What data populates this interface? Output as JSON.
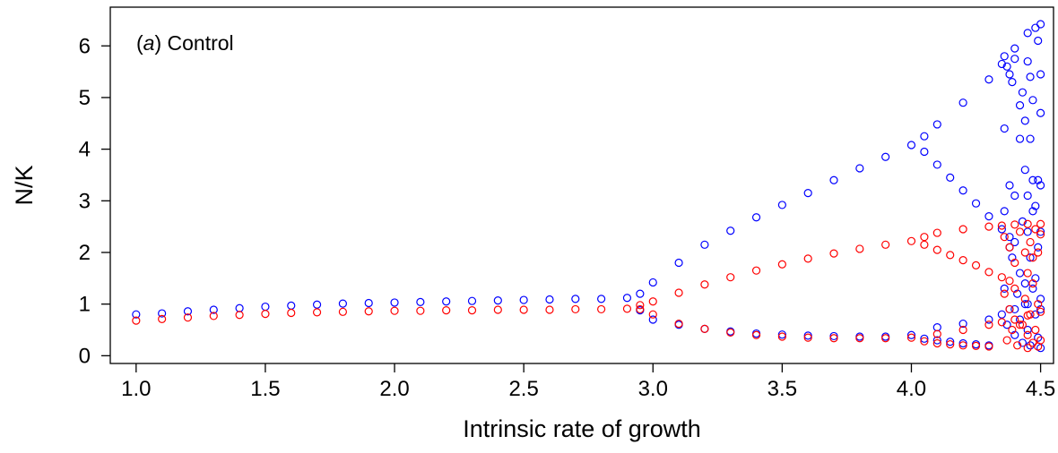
{
  "chart_data": {
    "type": "scatter",
    "title": "",
    "panel_label_prefix": "(",
    "panel_label_letter": "a",
    "panel_label_suffix": ") Control",
    "xlabel": "Intrinsic rate of growth",
    "ylabel": "N/K",
    "xlim": [
      0.9,
      4.55
    ],
    "ylim": [
      -0.15,
      6.75
    ],
    "xticks": [
      1.0,
      1.5,
      2.0,
      2.5,
      3.0,
      3.5,
      4.0,
      4.5
    ],
    "xtick_labels": [
      "1.0",
      "1.5",
      "2.0",
      "2.5",
      "3.0",
      "3.5",
      "4.0",
      "4.5"
    ],
    "yticks": [
      0,
      1,
      2,
      3,
      4,
      5,
      6
    ],
    "ytick_labels": [
      "0",
      "1",
      "2",
      "3",
      "4",
      "5",
      "6"
    ],
    "grid": false,
    "marker": "open-circle",
    "series": [
      {
        "color": "#0000ff",
        "points": [
          [
            1.0,
            0.8
          ],
          [
            1.1,
            0.82
          ],
          [
            1.2,
            0.86
          ],
          [
            1.3,
            0.89
          ],
          [
            1.4,
            0.92
          ],
          [
            1.5,
            0.95
          ],
          [
            1.6,
            0.97
          ],
          [
            1.7,
            0.99
          ],
          [
            1.8,
            1.01
          ],
          [
            1.9,
            1.02
          ],
          [
            2.0,
            1.03
          ],
          [
            2.1,
            1.04
          ],
          [
            2.2,
            1.05
          ],
          [
            2.3,
            1.06
          ],
          [
            2.4,
            1.07
          ],
          [
            2.5,
            1.08
          ],
          [
            2.6,
            1.09
          ],
          [
            2.7,
            1.1
          ],
          [
            2.8,
            1.1
          ],
          [
            2.9,
            1.12
          ],
          [
            2.95,
            1.2
          ],
          [
            3.0,
            1.42
          ],
          [
            3.1,
            1.8
          ],
          [
            3.2,
            2.15
          ],
          [
            3.3,
            2.42
          ],
          [
            3.4,
            2.68
          ],
          [
            3.5,
            2.92
          ],
          [
            3.6,
            3.15
          ],
          [
            3.7,
            3.4
          ],
          [
            3.8,
            3.63
          ],
          [
            3.9,
            3.85
          ],
          [
            4.0,
            4.08
          ],
          [
            4.05,
            4.25
          ],
          [
            4.1,
            4.48
          ],
          [
            4.2,
            4.9
          ],
          [
            4.3,
            5.35
          ],
          [
            4.35,
            5.65
          ],
          [
            4.4,
            5.95
          ],
          [
            4.45,
            6.25
          ],
          [
            4.5,
            6.42
          ],
          [
            2.95,
            0.88
          ],
          [
            3.0,
            0.7
          ],
          [
            3.1,
            0.6
          ],
          [
            3.2,
            0.52
          ],
          [
            3.3,
            0.47
          ],
          [
            3.4,
            0.43
          ],
          [
            3.5,
            0.41
          ],
          [
            3.6,
            0.39
          ],
          [
            3.7,
            0.38
          ],
          [
            3.8,
            0.37
          ],
          [
            3.9,
            0.37
          ],
          [
            4.0,
            0.4
          ],
          [
            4.1,
            0.55
          ],
          [
            4.2,
            0.62
          ],
          [
            4.3,
            0.7
          ],
          [
            4.35,
            0.8
          ],
          [
            4.4,
            0.9
          ],
          [
            4.45,
            1.0
          ],
          [
            4.5,
            1.1
          ],
          [
            4.05,
            3.95
          ],
          [
            4.1,
            3.7
          ],
          [
            4.15,
            3.45
          ],
          [
            4.2,
            3.2
          ],
          [
            4.25,
            2.95
          ],
          [
            4.3,
            2.7
          ],
          [
            4.35,
            2.45
          ],
          [
            4.38,
            2.3
          ],
          [
            4.05,
            0.33
          ],
          [
            4.1,
            0.3
          ],
          [
            4.15,
            0.27
          ],
          [
            4.2,
            0.24
          ],
          [
            4.25,
            0.22
          ],
          [
            4.3,
            0.2
          ],
          [
            4.36,
            5.8
          ],
          [
            4.37,
            5.6
          ],
          [
            4.38,
            5.45
          ],
          [
            4.39,
            5.3
          ],
          [
            4.4,
            5.75
          ],
          [
            4.42,
            4.85
          ],
          [
            4.43,
            5.1
          ],
          [
            4.44,
            4.55
          ],
          [
            4.45,
            5.7
          ],
          [
            4.46,
            5.4
          ],
          [
            4.47,
            4.95
          ],
          [
            4.48,
            6.35
          ],
          [
            4.49,
            6.1
          ],
          [
            4.5,
            5.45
          ],
          [
            4.5,
            4.7
          ],
          [
            4.36,
            4.4
          ],
          [
            4.38,
            3.3
          ],
          [
            4.4,
            3.1
          ],
          [
            4.42,
            4.2
          ],
          [
            4.44,
            3.6
          ],
          [
            4.45,
            3.1
          ],
          [
            4.46,
            4.2
          ],
          [
            4.47,
            3.4
          ],
          [
            4.48,
            2.9
          ],
          [
            4.49,
            3.4
          ],
          [
            4.5,
            3.3
          ],
          [
            4.36,
            2.8
          ],
          [
            4.38,
            2.1
          ],
          [
            4.39,
            1.9
          ],
          [
            4.4,
            2.2
          ],
          [
            4.42,
            1.6
          ],
          [
            4.43,
            2.6
          ],
          [
            4.44,
            1.4
          ],
          [
            4.45,
            2.4
          ],
          [
            4.46,
            1.9
          ],
          [
            4.47,
            2.8
          ],
          [
            4.48,
            1.5
          ],
          [
            4.49,
            2.1
          ],
          [
            4.5,
            2.4
          ],
          [
            4.36,
            1.3
          ],
          [
            4.37,
            0.6
          ],
          [
            4.38,
            0.9
          ],
          [
            4.4,
            0.4
          ],
          [
            4.41,
            1.2
          ],
          [
            4.42,
            0.7
          ],
          [
            4.43,
            0.25
          ],
          [
            4.44,
            1.0
          ],
          [
            4.45,
            0.5
          ],
          [
            4.46,
            0.2
          ],
          [
            4.47,
            1.3
          ],
          [
            4.48,
            0.8
          ],
          [
            4.49,
            0.35
          ],
          [
            4.5,
            0.15
          ],
          [
            4.5,
            0.9
          ]
        ]
      },
      {
        "color": "#ff0000",
        "points": [
          [
            1.0,
            0.68
          ],
          [
            1.1,
            0.71
          ],
          [
            1.2,
            0.74
          ],
          [
            1.3,
            0.77
          ],
          [
            1.4,
            0.79
          ],
          [
            1.5,
            0.81
          ],
          [
            1.6,
            0.83
          ],
          [
            1.7,
            0.84
          ],
          [
            1.8,
            0.85
          ],
          [
            1.9,
            0.86
          ],
          [
            2.0,
            0.87
          ],
          [
            2.1,
            0.87
          ],
          [
            2.2,
            0.88
          ],
          [
            2.3,
            0.88
          ],
          [
            2.4,
            0.89
          ],
          [
            2.5,
            0.89
          ],
          [
            2.6,
            0.89
          ],
          [
            2.7,
            0.9
          ],
          [
            2.8,
            0.9
          ],
          [
            2.9,
            0.91
          ],
          [
            2.95,
            0.98
          ],
          [
            3.0,
            1.05
          ],
          [
            3.1,
            1.22
          ],
          [
            3.2,
            1.38
          ],
          [
            3.3,
            1.52
          ],
          [
            3.4,
            1.65
          ],
          [
            3.5,
            1.77
          ],
          [
            3.6,
            1.88
          ],
          [
            3.7,
            1.98
          ],
          [
            3.8,
            2.07
          ],
          [
            3.9,
            2.15
          ],
          [
            4.0,
            2.22
          ],
          [
            4.05,
            2.3
          ],
          [
            4.1,
            2.38
          ],
          [
            4.2,
            2.45
          ],
          [
            4.3,
            2.5
          ],
          [
            4.35,
            2.52
          ],
          [
            4.4,
            2.54
          ],
          [
            4.45,
            2.55
          ],
          [
            4.5,
            2.55
          ],
          [
            2.95,
            0.9
          ],
          [
            3.0,
            0.8
          ],
          [
            3.1,
            0.62
          ],
          [
            3.2,
            0.52
          ],
          [
            3.3,
            0.45
          ],
          [
            3.4,
            0.4
          ],
          [
            3.5,
            0.37
          ],
          [
            3.6,
            0.35
          ],
          [
            3.7,
            0.34
          ],
          [
            3.8,
            0.34
          ],
          [
            3.9,
            0.34
          ],
          [
            4.0,
            0.35
          ],
          [
            4.1,
            0.42
          ],
          [
            4.2,
            0.5
          ],
          [
            4.3,
            0.6
          ],
          [
            4.35,
            0.65
          ],
          [
            4.4,
            0.7
          ],
          [
            4.45,
            0.78
          ],
          [
            4.5,
            0.85
          ],
          [
            4.05,
            2.15
          ],
          [
            4.1,
            2.05
          ],
          [
            4.15,
            1.95
          ],
          [
            4.2,
            1.85
          ],
          [
            4.25,
            1.75
          ],
          [
            4.3,
            1.62
          ],
          [
            4.35,
            1.52
          ],
          [
            4.38,
            1.45
          ],
          [
            4.05,
            0.28
          ],
          [
            4.1,
            0.24
          ],
          [
            4.15,
            0.22
          ],
          [
            4.2,
            0.2
          ],
          [
            4.25,
            0.19
          ],
          [
            4.3,
            0.18
          ],
          [
            4.36,
            2.3
          ],
          [
            4.38,
            2.1
          ],
          [
            4.4,
            1.8
          ],
          [
            4.42,
            2.4
          ],
          [
            4.44,
            2.0
          ],
          [
            4.45,
            1.6
          ],
          [
            4.46,
            2.2
          ],
          [
            4.47,
            1.9
          ],
          [
            4.48,
            2.45
          ],
          [
            4.49,
            2.0
          ],
          [
            4.5,
            2.35
          ],
          [
            4.36,
            1.2
          ],
          [
            4.38,
            0.9
          ],
          [
            4.4,
            1.3
          ],
          [
            4.42,
            0.6
          ],
          [
            4.44,
            1.1
          ],
          [
            4.45,
            0.4
          ],
          [
            4.46,
            0.8
          ],
          [
            4.47,
            1.4
          ],
          [
            4.48,
            0.5
          ],
          [
            4.49,
            1.0
          ],
          [
            4.5,
            0.3
          ],
          [
            4.37,
            0.3
          ],
          [
            4.39,
            0.5
          ],
          [
            4.41,
            0.2
          ],
          [
            4.43,
            0.6
          ],
          [
            4.45,
            0.15
          ],
          [
            4.47,
            0.25
          ],
          [
            4.49,
            0.18
          ]
        ]
      }
    ]
  }
}
